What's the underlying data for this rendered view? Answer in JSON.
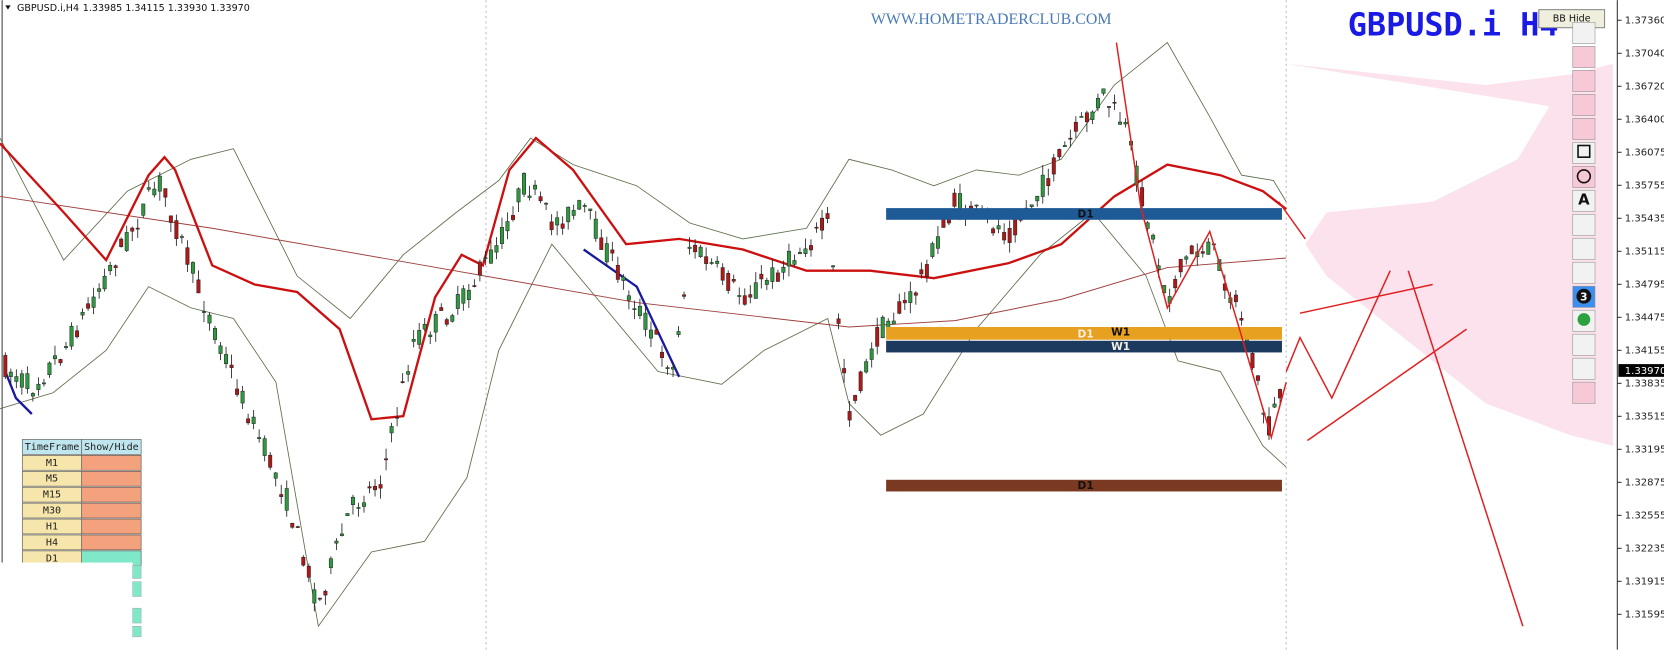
{
  "header": {
    "symbol": "GBPUSD.i,H4",
    "quotes": "1.33985 1.34115 1.33930 1.33970"
  },
  "watermark": "WWW.HOMETRADERCLUB.COM",
  "big_symbol": "GBPUSD.i H4",
  "button": "BB Hide",
  "zones": [
    {
      "label": "D1"
    },
    {
      "label": "D1"
    },
    {
      "label": "W1"
    },
    {
      "label": "W1"
    },
    {
      "label": "D1"
    }
  ],
  "price_axis": {
    "labels": [
      "1.37360",
      "1.37040",
      "1.36720",
      "1.36400",
      "1.36075",
      "1.35755",
      "1.35435",
      "1.35115",
      "1.34795",
      "1.34475",
      "1.34155",
      "1.33835",
      "1.33515",
      "1.33195",
      "1.32875",
      "1.32555",
      "1.32235",
      "1.31915",
      "1.31595"
    ],
    "current": "1.33970"
  },
  "toolbar": {
    "text_icon": "A",
    "number_icon": "3"
  },
  "timeframe_table": {
    "header": [
      "TimeFrame",
      "Show/Hide"
    ],
    "rows": [
      "M1",
      "M5",
      "M15",
      "M30",
      "H1",
      "H4",
      "D1"
    ]
  }
}
